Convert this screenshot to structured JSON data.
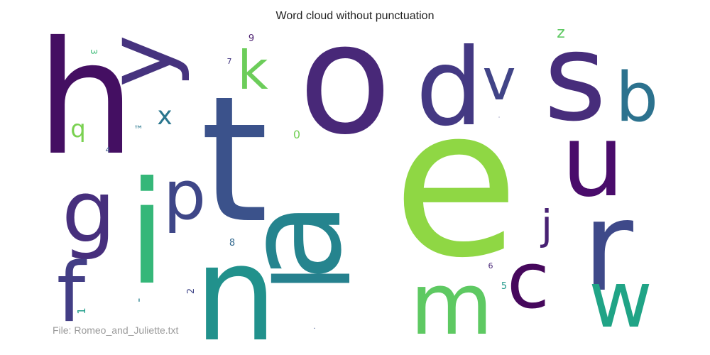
{
  "chart_data": {
    "type": "wordcloud",
    "title": "Word cloud without punctuation",
    "footer": "File: Romeo_and_Juliette.txt",
    "colormap": "viridis",
    "words": [
      {
        "text": "e",
        "color": "#8fd744"
      },
      {
        "text": "t",
        "color": "#3b528b"
      },
      {
        "text": "o",
        "color": "#482878"
      },
      {
        "text": "h",
        "color": "#440f62"
      },
      {
        "text": "a",
        "color": "#25848e"
      },
      {
        "text": "n",
        "color": "#21918c"
      },
      {
        "text": "s",
        "color": "#472d7b"
      },
      {
        "text": "i",
        "color": "#35b779"
      },
      {
        "text": "r",
        "color": "#3e4989"
      },
      {
        "text": "d",
        "color": "#443983"
      },
      {
        "text": "l",
        "color": "#26818e"
      },
      {
        "text": "u",
        "color": "#4a0c6b"
      },
      {
        "text": "y",
        "color": "#46337e"
      },
      {
        "text": "m",
        "color": "#5ec962"
      },
      {
        "text": "w",
        "color": "#20a486"
      },
      {
        "text": "g",
        "color": "#472f7d"
      },
      {
        "text": "f",
        "color": "#433e85"
      },
      {
        "text": "c",
        "color": "#46085c"
      },
      {
        "text": "b",
        "color": "#2c728e"
      },
      {
        "text": "p",
        "color": "#3f4788"
      },
      {
        "text": "v",
        "color": "#414487"
      },
      {
        "text": "k",
        "color": "#6ccd5a"
      },
      {
        "text": "x",
        "color": "#2a768e"
      },
      {
        "text": "j",
        "color": "#482173"
      },
      {
        "text": "q",
        "color": "#7ad151"
      },
      {
        "text": "z",
        "color": "#5ec962"
      },
      {
        "text": "™",
        "color": "#2a788e"
      },
      {
        "text": "0",
        "color": "#73d056"
      },
      {
        "text": "3",
        "color": "#3aba76"
      },
      {
        "text": "9",
        "color": "#481b6d"
      },
      {
        "text": "7",
        "color": "#453882"
      },
      {
        "text": "4",
        "color": "#3b528b"
      },
      {
        "text": "8",
        "color": "#31688e"
      },
      {
        "text": "6",
        "color": "#482677"
      },
      {
        "text": "5",
        "color": "#1f998a"
      },
      {
        "text": "2",
        "color": "#404688"
      },
      {
        "text": "1",
        "color": "#1f9e89"
      },
      {
        "text": "'",
        "color": "#277f8e"
      },
      {
        "text": "'",
        "color": "#2c738e"
      },
      {
        "text": "·",
        "color": "#3b528b"
      },
      {
        "text": "·",
        "color": "#404688"
      }
    ]
  }
}
